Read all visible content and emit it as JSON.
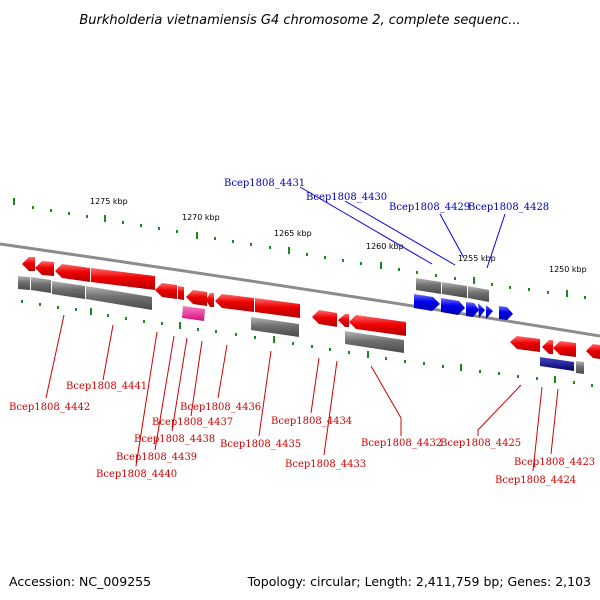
{
  "title": "Burkholderia vietnamiensis G4 chromosome 2, complete sequenc...",
  "footer": {
    "accession": "Accession: NC_009255",
    "topology": "Topology: circular; Length: 2,411,759 bp; Genes: 2,103"
  },
  "scale": {
    "major_ticks": [
      "1275 kbp",
      "1270 kbp",
      "1265 kbp",
      "1260 kbp",
      "1255 kbp",
      "1250 kbp"
    ]
  },
  "colors": {
    "gene_forward": "#0000ee",
    "gene_reverse": "#ee0000",
    "pseudo_gray": "#6e6e6e",
    "rna_magenta": "#e0208a",
    "navy": "#000080",
    "tick_green": "#1a8a1a",
    "backbone": "#8c8c8c"
  },
  "genes": {
    "upper": [
      {
        "label": "Bcep1808_4431",
        "strand": "forward"
      },
      {
        "label": "Bcep1808_4430",
        "strand": "forward"
      },
      {
        "label": "Bcep1808_4429",
        "strand": "forward"
      },
      {
        "label": "Bcep1808_4428",
        "strand": "forward"
      }
    ],
    "lower": [
      {
        "label": "Bcep1808_4442",
        "strand": "reverse"
      },
      {
        "label": "Bcep1808_4441",
        "strand": "reverse"
      },
      {
        "label": "Bcep1808_4440",
        "strand": "reverse"
      },
      {
        "label": "Bcep1808_4439",
        "strand": "reverse"
      },
      {
        "label": "Bcep1808_4438",
        "strand": "reverse"
      },
      {
        "label": "Bcep1808_4437",
        "strand": "reverse"
      },
      {
        "label": "Bcep1808_4436",
        "strand": "reverse"
      },
      {
        "label": "Bcep1808_4435",
        "strand": "reverse"
      },
      {
        "label": "Bcep1808_4434",
        "strand": "reverse"
      },
      {
        "label": "Bcep1808_4433",
        "strand": "reverse"
      },
      {
        "label": "Bcep1808_4432",
        "strand": "reverse"
      },
      {
        "label": "Bcep1808_4425",
        "strand": "reverse"
      },
      {
        "label": "Bcep1808_4424",
        "strand": "reverse"
      },
      {
        "label": "Bcep1808_4423",
        "strand": "reverse"
      }
    ]
  }
}
